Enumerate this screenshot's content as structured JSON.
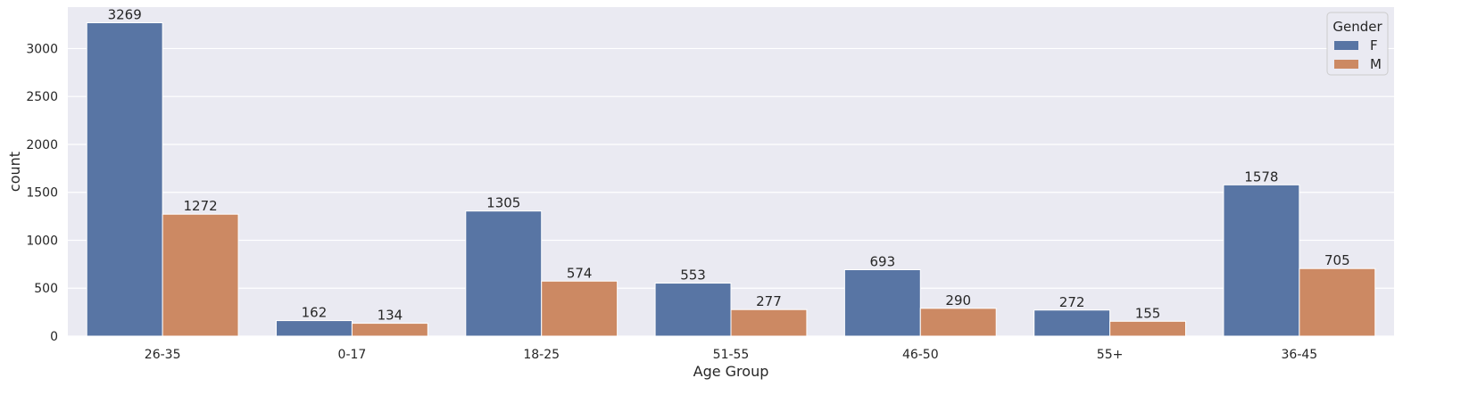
{
  "chart_data": {
    "type": "bar",
    "xlabel": "Age Group",
    "ylabel": "count",
    "categories": [
      "26-35",
      "0-17",
      "18-25",
      "51-55",
      "46-50",
      "55+",
      "36-45"
    ],
    "series": [
      {
        "name": "F",
        "color": "#5875a4",
        "values": [
          3269,
          162,
          1305,
          553,
          693,
          272,
          1578
        ]
      },
      {
        "name": "M",
        "color": "#cc8963",
        "values": [
          1272,
          134,
          574,
          277,
          290,
          155,
          705
        ]
      }
    ],
    "yticks": [
      0,
      500,
      1000,
      1500,
      2000,
      2500,
      3000
    ],
    "ylim": [
      0,
      3432
    ],
    "grid": true,
    "legend": {
      "title": "Gender",
      "position": "top-right"
    },
    "background_color": "#eaeaf2"
  }
}
